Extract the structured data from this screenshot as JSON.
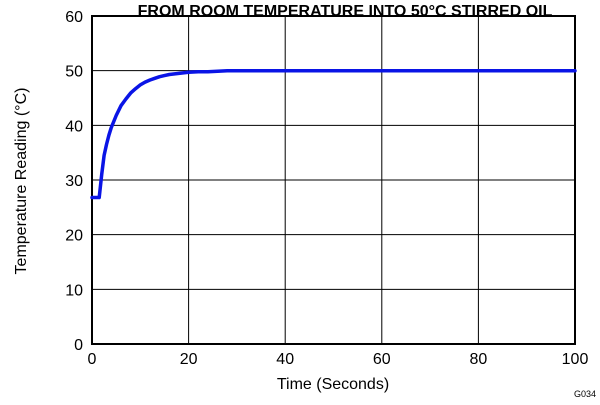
{
  "chart_data": {
    "type": "line",
    "title": "FROM ROOM TEMPERATURE INTO 50°C STIRRED OIL",
    "xlabel": "Time (Seconds)",
    "ylabel": "Temperature Reading (°C)",
    "xlim": [
      0,
      100
    ],
    "ylim": [
      0,
      60
    ],
    "x_ticks": [
      0,
      20,
      40,
      60,
      80,
      100
    ],
    "y_ticks": [
      0,
      10,
      20,
      30,
      40,
      50,
      60
    ],
    "grid": true,
    "legend": "none",
    "figure_code": "G034",
    "line_color": "#0a14e6",
    "series": [
      {
        "x": [
          0,
          1.5,
          2,
          2.5,
          3,
          3.5,
          4,
          5,
          6,
          7,
          8,
          9,
          10,
          11,
          12,
          13,
          14,
          15,
          16,
          18,
          20,
          22,
          24,
          26,
          28,
          30,
          40,
          50,
          60,
          70,
          80,
          90,
          100
        ],
        "y": [
          26.8,
          26.8,
          31,
          34.5,
          36.5,
          38.2,
          39.6,
          41.8,
          43.6,
          44.8,
          45.9,
          46.7,
          47.4,
          47.9,
          48.3,
          48.6,
          48.9,
          49.1,
          49.3,
          49.5,
          49.7,
          49.8,
          49.8,
          49.9,
          50,
          50,
          50,
          50,
          50,
          50,
          50,
          50,
          50
        ]
      }
    ]
  }
}
